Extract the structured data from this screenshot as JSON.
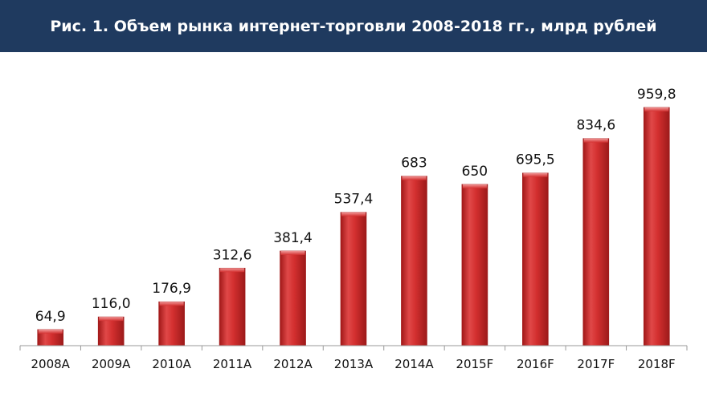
{
  "title": "Рис. 1. Объем рынка интернет-торговли  2008-2018 гг., млрд рублей",
  "colors": {
    "title_bar": "#1f3a5f",
    "title_text": "#ffffff",
    "bar": "#d32f2f",
    "bar_dark": "#a11818",
    "bar_light": "#f07a7a",
    "axis": "#9a9a9a"
  },
  "chart_data": {
    "type": "bar",
    "title": "Рис. 1. Объем рынка интернет-торговли  2008-2018 гг., млрд рублей",
    "categories": [
      "2008A",
      "2009A",
      "2010A",
      "2011A",
      "2012A",
      "2013A",
      "2014A",
      "2015F",
      "2016F",
      "2017F",
      "2018F"
    ],
    "values": [
      64.9,
      116.0,
      176.9,
      312.6,
      381.4,
      537.4,
      683,
      650,
      695.5,
      834.6,
      959.8
    ],
    "value_labels": [
      "64,9",
      "116,0",
      "176,9",
      "312,6",
      "381,4",
      "537,4",
      "683",
      "650",
      "695,5",
      "834,6",
      "959,8"
    ],
    "xlabel": "",
    "ylabel": "",
    "ylim": [
      0,
      1000
    ],
    "grid": false,
    "legend": "none"
  }
}
